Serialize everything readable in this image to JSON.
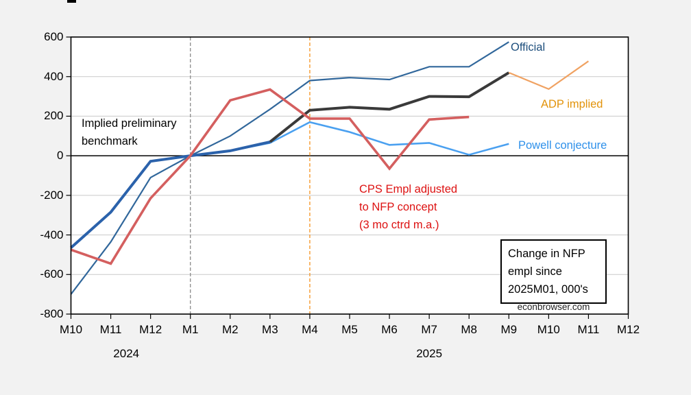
{
  "chart_data": {
    "type": "line",
    "title": "Change in NFP empl since 2025M01, 000's",
    "x_tick_labels": [
      "M10",
      "M11",
      "M12",
      "M1",
      "M2",
      "M3",
      "M4",
      "M5",
      "M6",
      "M7",
      "M8",
      "M9",
      "M10",
      "M11",
      "M12"
    ],
    "year_labels": [
      {
        "text": "2024",
        "tick_index": 1.39
      },
      {
        "text": "2025",
        "tick_index": 9.0
      }
    ],
    "ylim": [
      -800,
      600
    ],
    "y_ticks": [
      600,
      400,
      200,
      0,
      -200,
      -400,
      -600,
      -800
    ],
    "grid": true,
    "grid_color": "#c9c9c9",
    "background_color": "#f2f2f2",
    "plot_background_color": "#ffffff",
    "vlines": [
      {
        "name": "vline-2025M01",
        "tick_index": 3,
        "color": "#8a8a8a"
      },
      {
        "name": "vline-2025M04",
        "tick_index": 6,
        "color": "#f5921e"
      }
    ],
    "series": [
      {
        "id": "official",
        "name": "Official",
        "color": "#31679b",
        "width": 2.2,
        "start_index": 0,
        "values": [
          -700,
          -435,
          -110,
          0,
          100,
          235,
          380,
          395,
          385,
          450,
          450,
          575
        ]
      },
      {
        "id": "powell-conjecture",
        "name": "Powell conjecture",
        "color": "#4aa0f0",
        "width": 2.6,
        "start_index": 3,
        "values": [
          0,
          25,
          65,
          170,
          120,
          55,
          65,
          5,
          60
        ]
      },
      {
        "id": "implied-preliminary-benchmark",
        "name": "Implied preliminary benchmark",
        "color": "#3a3a3a",
        "width": 4,
        "start_index": 0,
        "values": [
          -465,
          -285,
          -28,
          0,
          25,
          70,
          230,
          245,
          235,
          300,
          298,
          420
        ],
        "segments": [
          {
            "from": 0,
            "to": 5,
            "color": "#2b62ab"
          },
          {
            "from": 5,
            "to": 11,
            "color": "#3a3a3a"
          }
        ]
      },
      {
        "id": "cps-adjusted",
        "name": "CPS Empl adjusted to NFP concept (3 mo ctrd m.a.)",
        "color": "#d45f5f",
        "width": 3.6,
        "start_index": 0,
        "values": [
          -475,
          -545,
          -215,
          0,
          280,
          335,
          188,
          188,
          -65,
          183,
          196
        ]
      },
      {
        "id": "adp-implied",
        "name": "ADP implied",
        "color": "#f0a262",
        "width": 2.2,
        "start_index": 11,
        "values": [
          420,
          337,
          478
        ]
      }
    ],
    "annotations": {
      "implied_benchmark": {
        "text": "Implied preliminary\nbenchmark",
        "color": "#000000"
      },
      "cps": {
        "text": "CPS Empl adjusted\nto NFP concept\n(3 mo ctrd m.a.)",
        "color": "#dd1212"
      },
      "official": {
        "text": "Official",
        "color": "#1d4e7c"
      },
      "adp": {
        "text": "ADP implied",
        "color": "#e2930b"
      },
      "powell": {
        "text": "Powell conjecture",
        "color": "#2e90ea"
      },
      "title_box": {
        "text": "Change in NFP\nempl since\n2025M01, 000's",
        "color": "#000000"
      },
      "watermark": {
        "text": "econbrowser.com",
        "color": "#222222"
      }
    }
  }
}
